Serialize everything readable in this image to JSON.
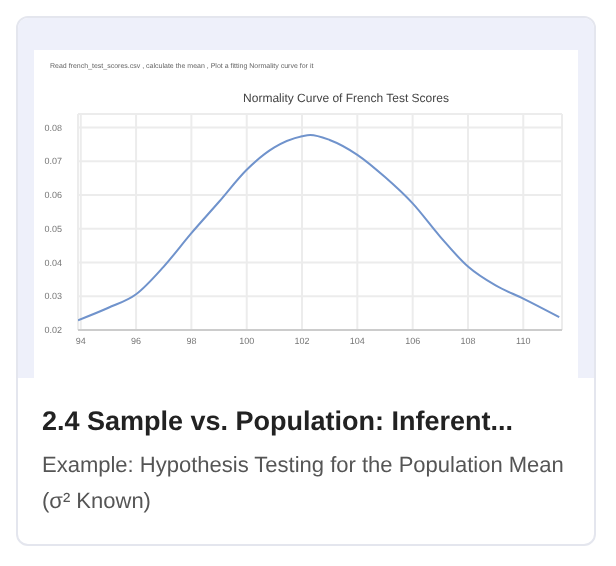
{
  "chart_data": {
    "type": "line",
    "title": "Normality Curve of French Test Scores",
    "annotations": [
      "Read french_test_scores.csv , calculate the mean , Plot a fitting Normality curve for it",
      "2.4 Sample vs. Population: Inferent...",
      "Example: Hypothesis Testing for the Population Mean (σ² Known)"
    ],
    "x": [
      93.9,
      95,
      96,
      97,
      98,
      99,
      100,
      101,
      102,
      102.3,
      103,
      104,
      105,
      106,
      107,
      108,
      109,
      110,
      111.3
    ],
    "series": [
      {
        "color": "#7093cc",
        "values": [
          0.0229,
          0.0266,
          0.0306,
          0.0388,
          0.0487,
          0.058,
          0.0675,
          0.0741,
          0.0774,
          0.0778,
          0.0763,
          0.0719,
          0.0653,
          0.0575,
          0.0476,
          0.0388,
          0.0332,
          0.0293,
          0.0238
        ]
      }
    ],
    "xlim": [
      93.9,
      111.4
    ],
    "xticks": [
      94,
      96,
      98,
      100,
      102,
      104,
      106,
      108,
      110
    ],
    "ylim": [
      0.02,
      0.084
    ],
    "yticks": [
      0.02,
      0.03,
      0.04,
      0.05,
      0.06,
      0.07,
      0.08
    ],
    "grid": true,
    "legend": false,
    "marker": "none",
    "line_style": "solid"
  }
}
